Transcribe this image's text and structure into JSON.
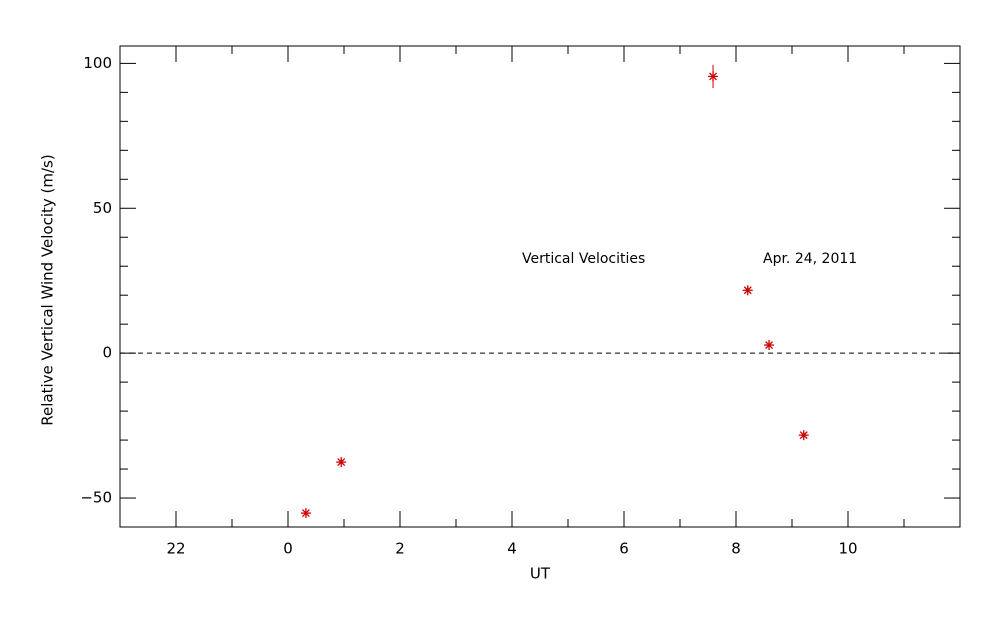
{
  "chart_data": {
    "type": "scatter",
    "x_label": "UT",
    "y_label": "Relative Vertical Wind Velocity (m/s)",
    "annotations": [
      "Vertical Velocities",
      "Apr. 24, 2011"
    ],
    "xlim": [
      -3,
      12
    ],
    "ylim": [
      -60,
      106
    ],
    "xticks": [
      {
        "value": -2,
        "label": "22"
      },
      0,
      2,
      4,
      6,
      8,
      10
    ],
    "yticks": [
      {
        "value": -50,
        "label": "−50"
      },
      0,
      50,
      100
    ],
    "xminorticks": [
      -1,
      1,
      3,
      5,
      7,
      9,
      11
    ],
    "yminorticks": [
      -40,
      -30,
      -20,
      -10,
      10,
      20,
      30,
      40,
      60,
      70,
      80,
      90
    ],
    "zero_line": true,
    "series": [
      {
        "name": "Vertical Velocities",
        "color": "#cc0000",
        "x": [
          0.32,
          0.95,
          7.59,
          8.21,
          8.59,
          9.21
        ],
        "values": [
          -55.2,
          -37.6,
          95.5,
          21.7,
          2.8,
          -28.3
        ],
        "errors": [
          1,
          1,
          4,
          1,
          1,
          1
        ]
      }
    ]
  }
}
